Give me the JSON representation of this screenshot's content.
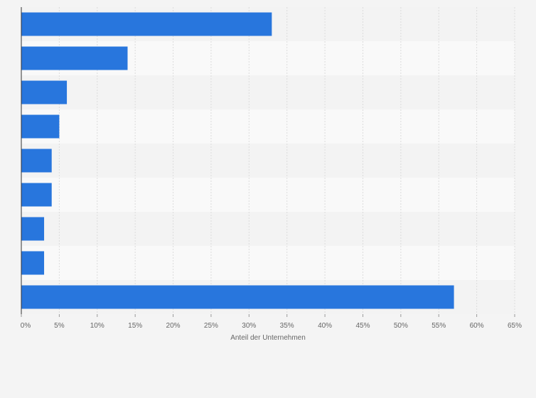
{
  "chart_data": {
    "type": "bar",
    "orientation": "horizontal",
    "categories": [
      "",
      "",
      "",
      "",
      "",
      "",
      "",
      "",
      ""
    ],
    "values": [
      33,
      14,
      6,
      5,
      4,
      4,
      3,
      3,
      57
    ],
    "unit": "%",
    "xlabel": "Anteil der Unternehmen",
    "ylabel": "",
    "xlim": [
      0,
      65
    ],
    "x_ticks": [
      "0%",
      "5%",
      "10%",
      "15%",
      "20%",
      "25%",
      "30%",
      "35%",
      "40%",
      "45%",
      "50%",
      "55%",
      "60%",
      "65%"
    ],
    "grid": true,
    "legend": "none",
    "colors": {
      "bar": "#2876dd",
      "band_dark": "#f3f3f3",
      "band_light": "#f9f9f9",
      "grid": "#dcdcdc",
      "axis": "#333333",
      "page_bg": "#f4f4f4"
    }
  }
}
